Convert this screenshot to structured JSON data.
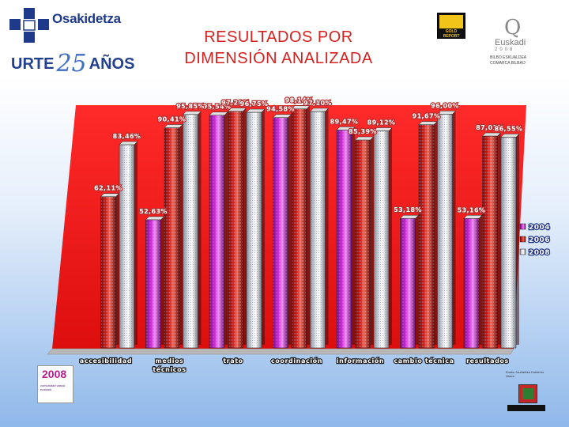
{
  "header": {
    "org_name": "Osakidetza",
    "anniversary_prefix": "URTE",
    "anniversary_number": "25",
    "anniversary_suffix": "AÑOS",
    "title_line1": "RESULTADOS POR",
    "title_line2": "DIMENSIÓN ANALIZADA",
    "logo_gold_top": "A+",
    "logo_gold_text": "GOLD REPORT",
    "euskadi_name": "Euskadi",
    "euskadi_year": "2008",
    "euskadi_sub": "BILBO ESKUALDEA COMARCA BILBAO"
  },
  "footer": {
    "logo_2008_number": "2008",
    "logo_2008_text": "comunidad vasca euskadi",
    "logo_gv_text": "Eusko Jaurlaritza Gobierno Vasco"
  },
  "colors": {
    "2004": "#cc2ad6",
    "2006": "#d42020",
    "2008": "#c7ccd6",
    "wall": "#e01010",
    "floor": "#b8b8b8",
    "label_outline": "#b23030",
    "category_outline": "#1c1c1c",
    "legend_outline": "#1c2f8a"
  },
  "chart_data": {
    "type": "bar",
    "style": "3d-cylinder",
    "categories": [
      "accesibilidad",
      "medios técnicos",
      "trato",
      "coordinación",
      "información",
      "cambio técnica",
      "resultados"
    ],
    "series": [
      {
        "name": "2004",
        "values": [
          null,
          52.63,
          95.54,
          94.58,
          89.47,
          53.18,
          53.16
        ]
      },
      {
        "name": "2006",
        "values": [
          62.11,
          90.41,
          97.2,
          98.14,
          85.39,
          91.67,
          87.01
        ]
      },
      {
        "name": "2008",
        "values": [
          83.46,
          95.85,
          96.75,
          97.1,
          89.12,
          96.0,
          86.55
        ]
      }
    ],
    "data_labels": [
      [
        "",
        "52,63%",
        "95,54%",
        "94,58%",
        "89,47%",
        "53,18%",
        "53,16%"
      ],
      [
        "62,11%",
        "90,41%",
        "97,20%",
        "98,14%",
        "85,39%",
        "91,67%",
        "87,01%"
      ],
      [
        "83,46%",
        "95,85%",
        "96,75%",
        "97,10%",
        "89,12%",
        "96,00%",
        "86,55%"
      ]
    ],
    "legend_position": "right",
    "grid": false
  }
}
